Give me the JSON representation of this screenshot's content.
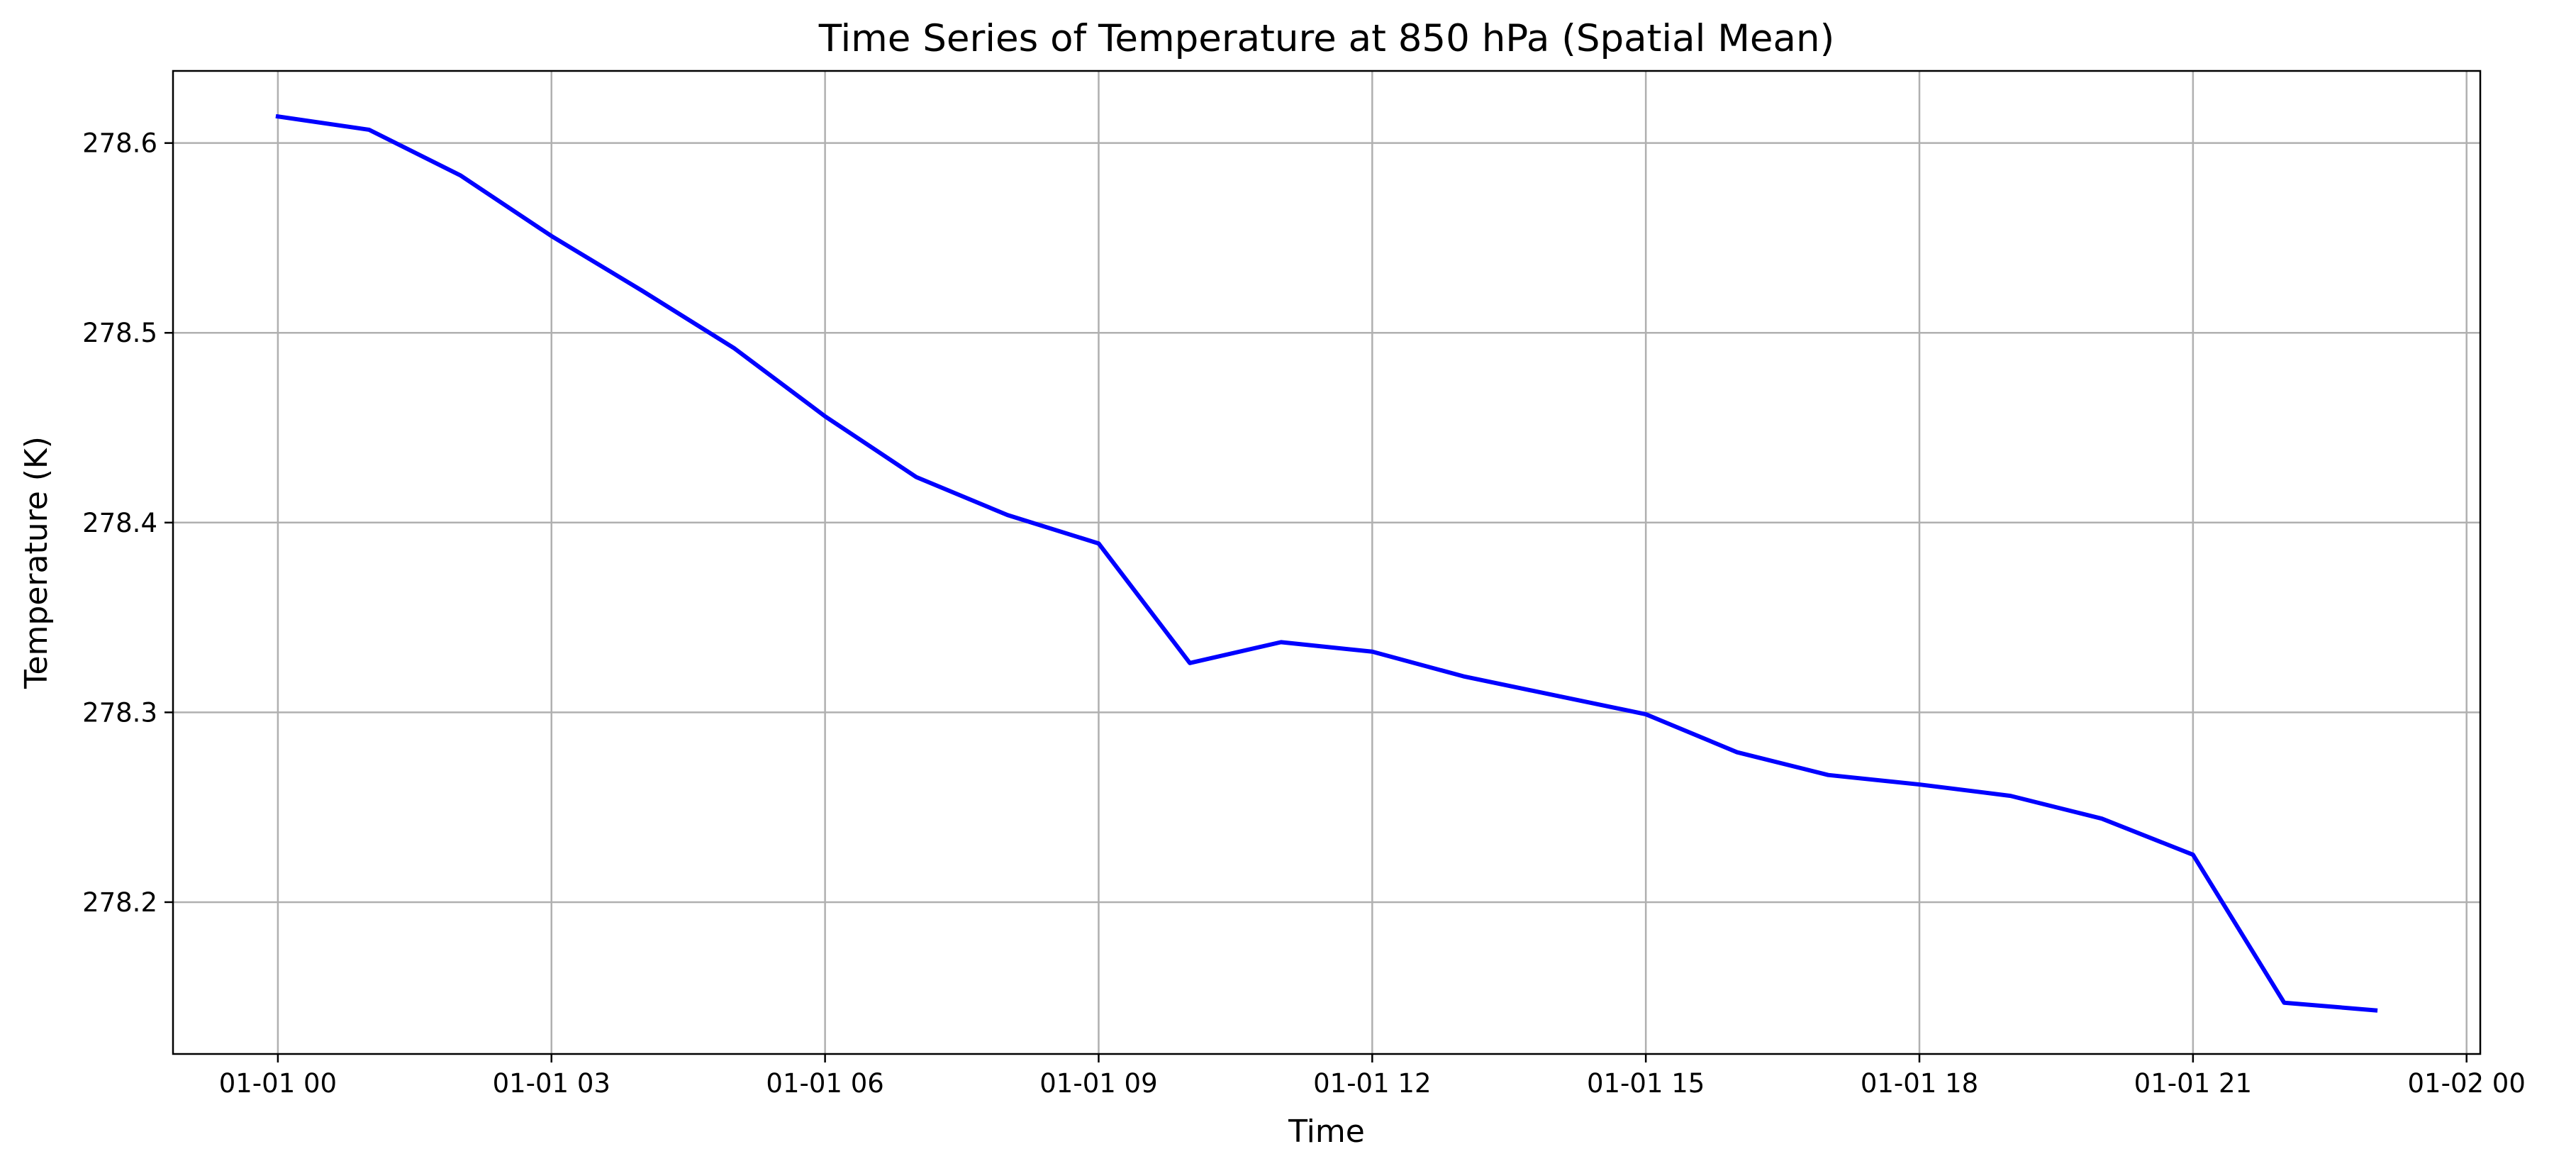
{
  "chart_data": {
    "type": "line",
    "title": "Time Series of Temperature at 850 hPa (Spatial Mean)",
    "xlabel": "Time",
    "ylabel": "Temperature (K)",
    "x_unit": "date-hour",
    "x": [
      "01-01 00",
      "01-01 01",
      "01-01 02",
      "01-01 03",
      "01-01 04",
      "01-01 05",
      "01-01 06",
      "01-01 07",
      "01-01 08",
      "01-01 09",
      "01-01 10",
      "01-01 11",
      "01-01 12",
      "01-01 13",
      "01-01 14",
      "01-01 15",
      "01-01 16",
      "01-01 17",
      "01-01 18",
      "01-01 19",
      "01-01 20",
      "01-01 21",
      "01-01 22",
      "01-01 23"
    ],
    "series": [
      {
        "color": "#0000ff",
        "values": [
          278.614,
          278.607,
          278.583,
          278.551,
          278.522,
          278.492,
          278.456,
          278.424,
          278.404,
          278.389,
          278.326,
          278.337,
          278.332,
          278.319,
          278.309,
          278.299,
          278.279,
          278.267,
          278.262,
          278.256,
          278.244,
          278.225,
          278.147,
          278.143
        ]
      }
    ],
    "x_ticks": [
      "01-01 00",
      "01-01 03",
      "01-01 06",
      "01-01 09",
      "01-01 12",
      "01-01 15",
      "01-01 18",
      "01-01 21",
      "01-02 00"
    ],
    "xlim": [
      "01-01 00 -1.15h",
      "01-02 00 +0.15h"
    ],
    "y_ticks": [
      "278.2",
      "278.3",
      "278.4",
      "278.5",
      "278.6"
    ],
    "ylim": [
      278.12,
      278.638
    ],
    "grid": true,
    "legend": "none"
  }
}
